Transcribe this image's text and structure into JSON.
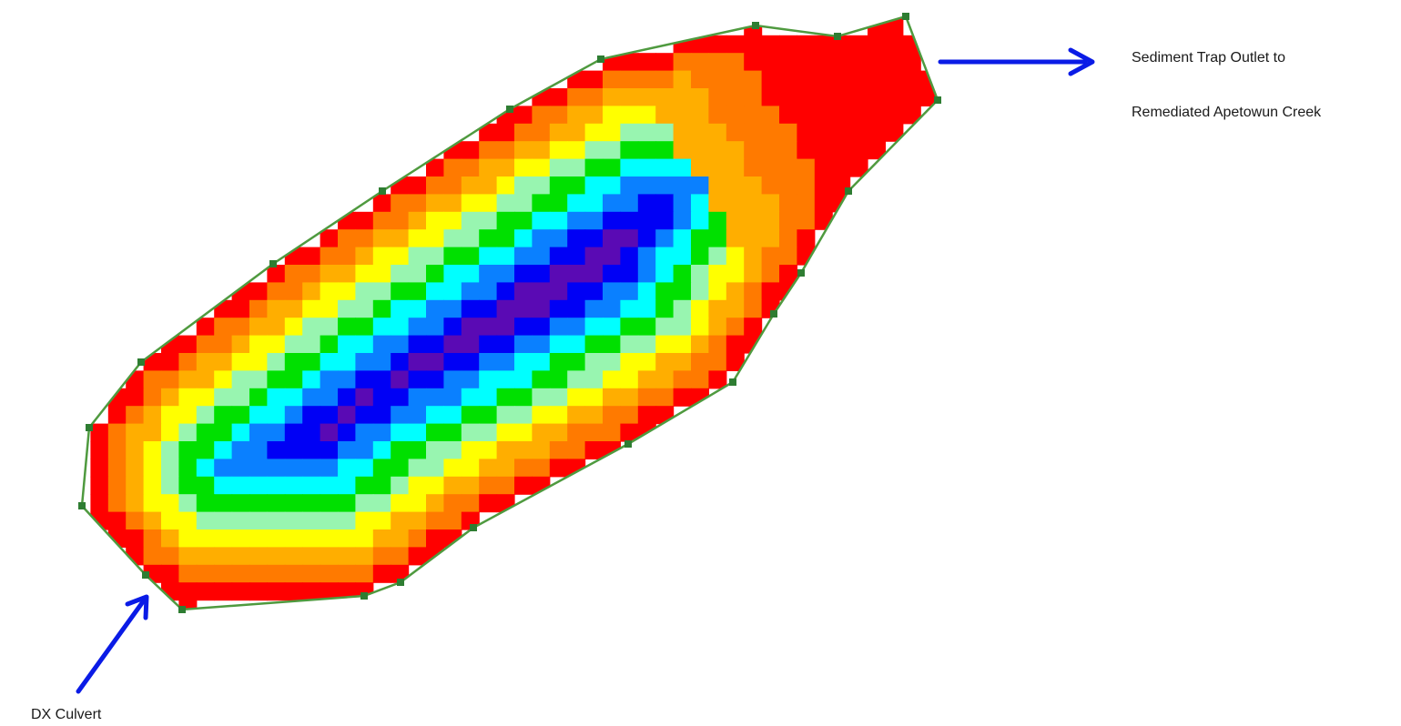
{
  "labels": {
    "outlet_line1": "Sediment Trap Outlet to",
    "outlet_line2": "Remediated Apetowun Creek",
    "culvert": "DX Culvert"
  },
  "colors": {
    "boundary": "#4f9a3f",
    "vertex": "#2e7d32",
    "arrow": "#0a1be6",
    "depth_classes": [
      "#ff0000",
      "#ff7a00",
      "#ffae00",
      "#ffff00",
      "#98f5b0",
      "#00e000",
      "#00ffff",
      "#0a80ff",
      "#0000f5",
      "#5a0ab4",
      "#9650f0"
    ]
  },
  "icons": {
    "outlet_arrow": "arrow-right-icon",
    "culvert_arrow": "arrow-up-right-icon"
  }
}
